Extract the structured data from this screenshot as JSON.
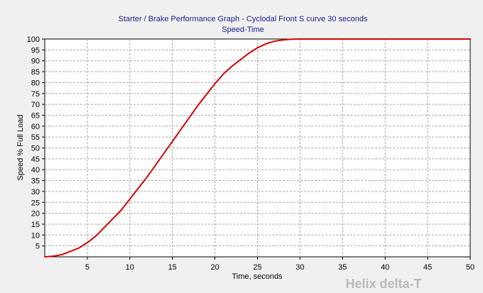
{
  "chart_data": {
    "type": "line",
    "title": "Starter / Brake Performance Graph - Cyclodal Front S curve 30 seconds",
    "subtitle": "Speed-Time",
    "xlabel": "Time, seconds",
    "ylabel": "Speed % Full Load",
    "xlim": [
      0,
      50
    ],
    "ylim": [
      0,
      100
    ],
    "x_ticks": [
      5,
      10,
      15,
      20,
      25,
      30,
      35,
      40,
      45,
      50
    ],
    "y_ticks": [
      5,
      10,
      15,
      20,
      25,
      30,
      35,
      40,
      45,
      50,
      55,
      60,
      65,
      70,
      75,
      80,
      85,
      90,
      95,
      100
    ],
    "grid": true,
    "series": [
      {
        "color": "#d40000",
        "x": [
          0,
          1,
          2,
          3,
          4,
          5,
          6,
          7,
          8,
          9,
          10,
          11,
          12,
          13,
          14,
          15,
          16,
          17,
          18,
          19,
          20,
          21,
          22,
          23,
          24,
          25,
          26,
          27,
          28,
          29,
          30,
          35,
          40,
          45,
          50
        ],
        "y": [
          0,
          0.3,
          1,
          2.5,
          4,
          6.5,
          9.5,
          13.5,
          17.5,
          21.5,
          26.5,
          31.5,
          36.5,
          42,
          47.5,
          53,
          58.5,
          64,
          69.5,
          74.5,
          79.5,
          84,
          87.5,
          90.5,
          93.5,
          96,
          97.8,
          99,
          99.6,
          99.9,
          100,
          100,
          100,
          100,
          100
        ]
      }
    ]
  },
  "watermark": "Helix delta-T"
}
